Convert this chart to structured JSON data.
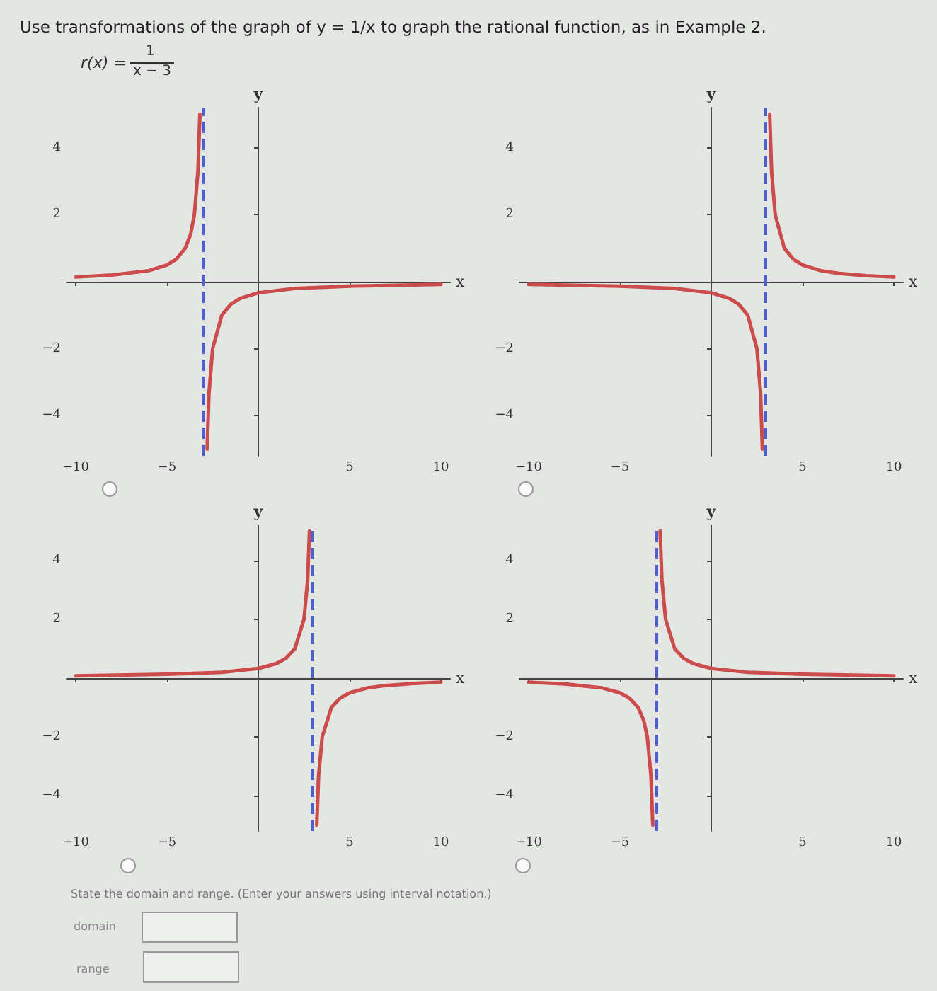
{
  "chart_data": [
    {
      "type": "other",
      "title": "Use transformations of the graph of y = 1/x to graph the rational function, as in Example 2.",
      "annotations": [
        "r(x) =",
        "1",
        "x − 3"
      ]
    },
    {
      "type": "line",
      "xlabel": "x",
      "ylabel": "y",
      "xlim": [
        -10.5,
        10.5
      ],
      "ylim": [
        -5.2,
        5.2
      ],
      "xticks": [
        -10,
        -5,
        5,
        10
      ],
      "yticks": [
        -4,
        -2,
        2,
        4
      ],
      "marker": "none",
      "line_style": "solid",
      "grid": false,
      "series": [
        {
          "color": "#cc4b4b",
          "x": [
            -10,
            -8,
            -6,
            -5,
            -4.5,
            -4,
            -3.7,
            -3.5,
            -3.3,
            -3.2
          ],
          "values": [
            0.14,
            0.2,
            0.33,
            0.5,
            0.67,
            1,
            1.43,
            2,
            3.33,
            5
          ]
        },
        {
          "color": "#cc4b4b",
          "x": [
            -2.8,
            -2.7,
            -2.5,
            -2,
            -1.5,
            -1,
            0,
            2,
            5,
            10
          ],
          "values": [
            -5,
            -3.33,
            -2,
            -1,
            -0.67,
            -0.5,
            -0.33,
            -0.2,
            -0.13,
            -0.08
          ]
        }
      ],
      "ref_lines": [
        {
          "axis": "x",
          "value": -3,
          "color": "#4f5fd0",
          "line_style": "dashed"
        }
      ]
    },
    {
      "type": "line",
      "xlabel": "x",
      "ylabel": "y",
      "xlim": [
        -10.5,
        10.5
      ],
      "ylim": [
        -5.2,
        5.2
      ],
      "xticks": [
        -10,
        -5,
        5,
        10
      ],
      "yticks": [
        -4,
        -2,
        2,
        4
      ],
      "marker": "none",
      "line_style": "solid",
      "grid": false,
      "series": [
        {
          "color": "#cc4b4b",
          "x": [
            -10,
            -5,
            -2,
            0,
            1,
            1.5,
            2,
            2.5,
            2.7,
            2.8
          ],
          "values": [
            -0.08,
            -0.13,
            -0.2,
            -0.33,
            -0.5,
            -0.67,
            -1,
            -2,
            -3.33,
            -5
          ]
        },
        {
          "color": "#cc4b4b",
          "x": [
            3.2,
            3.3,
            3.5,
            4,
            4.5,
            5,
            6,
            7,
            8.5,
            10
          ],
          "values": [
            5,
            3.33,
            2,
            1,
            0.67,
            0.5,
            0.33,
            0.25,
            0.18,
            0.14
          ]
        }
      ],
      "ref_lines": [
        {
          "axis": "x",
          "value": 3,
          "color": "#4f5fd0",
          "line_style": "dashed"
        }
      ]
    },
    {
      "type": "line",
      "xlabel": "x",
      "ylabel": "y",
      "xlim": [
        -10.5,
        10.5
      ],
      "ylim": [
        -5.2,
        5.2
      ],
      "xticks": [
        -10,
        -5,
        5,
        10
      ],
      "yticks": [
        -4,
        -2,
        2,
        4
      ],
      "marker": "none",
      "line_style": "solid",
      "grid": false,
      "series": [
        {
          "color": "#cc4b4b",
          "x": [
            -10,
            -5,
            -2,
            0,
            1,
            1.5,
            2,
            2.5,
            2.7,
            2.8
          ],
          "values": [
            0.08,
            0.13,
            0.2,
            0.33,
            0.5,
            0.67,
            1,
            2,
            3.33,
            5
          ]
        },
        {
          "color": "#cc4b4b",
          "x": [
            3.2,
            3.3,
            3.5,
            4,
            4.5,
            5,
            6,
            7,
            8.5,
            10
          ],
          "values": [
            -5,
            -3.33,
            -2,
            -1,
            -0.67,
            -0.5,
            -0.33,
            -0.25,
            -0.18,
            -0.14
          ]
        }
      ],
      "ref_lines": [
        {
          "axis": "x",
          "value": 3,
          "color": "#4f5fd0",
          "line_style": "dashed"
        }
      ]
    },
    {
      "type": "line",
      "xlabel": "x",
      "ylabel": "y",
      "xlim": [
        -10.5,
        10.5
      ],
      "ylim": [
        -5.2,
        5.2
      ],
      "xticks": [
        -10,
        -5,
        5,
        10
      ],
      "yticks": [
        -4,
        -2,
        2,
        4
      ],
      "marker": "none",
      "line_style": "solid",
      "grid": false,
      "series": [
        {
          "color": "#cc4b4b",
          "x": [
            -10,
            -8,
            -6,
            -5,
            -4.5,
            -4,
            -3.7,
            -3.5,
            -3.3,
            -3.2
          ],
          "values": [
            -0.14,
            -0.2,
            -0.33,
            -0.5,
            -0.67,
            -1,
            -1.43,
            -2,
            -3.33,
            -5
          ]
        },
        {
          "color": "#cc4b4b",
          "x": [
            -2.8,
            -2.7,
            -2.5,
            -2,
            -1.5,
            -1,
            0,
            2,
            5,
            10
          ],
          "values": [
            5,
            3.33,
            2,
            1,
            0.67,
            0.5,
            0.33,
            0.2,
            0.13,
            0.08
          ]
        }
      ],
      "ref_lines": [
        {
          "axis": "x",
          "value": -3,
          "color": "#4f5fd0",
          "line_style": "dashed"
        }
      ]
    },
    {
      "type": "other",
      "annotations": [
        "State the domain and range. (Enter your answers using interval notation.)",
        "domain",
        "range"
      ]
    }
  ]
}
